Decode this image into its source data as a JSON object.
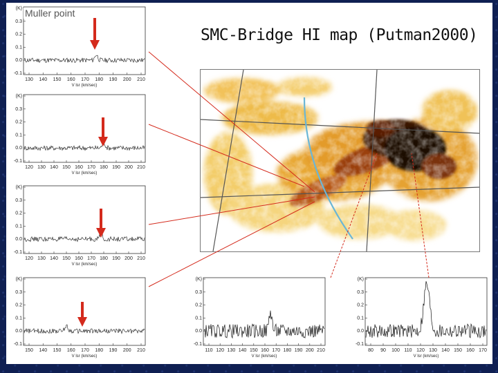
{
  "slide": {
    "title": "SMC-Bridge HI map (Putman2000)",
    "accent_color": "#d42a1c",
    "stream_color": "#6ab6d6",
    "background_color": "#0f1f52"
  },
  "spectra": [
    {
      "id": "muller",
      "label": "Muller point",
      "x_ticks": [
        "130",
        "140",
        "150",
        "160",
        "170",
        "180",
        "190",
        "200",
        "210"
      ],
      "y_ticks": [
        "(K)",
        "0.3",
        "0.2",
        "0.1",
        "0.0",
        "-0.1"
      ],
      "x_axis_title": "V lsr (km/sec)",
      "peak_velocity": 178
    },
    {
      "id": "p2",
      "label": "",
      "x_ticks": [
        "120",
        "130",
        "140",
        "150",
        "160",
        "170",
        "180",
        "190",
        "200",
        "210"
      ],
      "y_ticks": [
        "(K)",
        "0.3",
        "0.2",
        "0.1",
        "0.0",
        "-0.1"
      ],
      "x_axis_title": "V lsr (km/sec)",
      "peak_velocity": 180
    },
    {
      "id": "p3",
      "label": "",
      "x_ticks": [
        "120",
        "130",
        "140",
        "150",
        "160",
        "170",
        "180",
        "190",
        "200",
        "210"
      ],
      "y_ticks": [
        "(K)",
        "0.3",
        "0.2",
        "0.1",
        "0.0",
        "-0.1"
      ],
      "x_axis_title": "V lsr (km/sec)",
      "peak_velocity": 178
    },
    {
      "id": "p4",
      "label": "",
      "x_ticks": [
        "150",
        "140",
        "150",
        "160",
        "170",
        "180",
        "190",
        "200",
        "210"
      ],
      "y_ticks": [
        "(K)",
        "0.3",
        "0.2",
        "0.1",
        "0.0",
        "-0.1"
      ],
      "x_axis_title": "V lsr (km/sec)",
      "peak_velocity": 170
    },
    {
      "id": "p5",
      "label": "",
      "x_ticks": [
        "110",
        "120",
        "130",
        "140",
        "150",
        "160",
        "170",
        "180",
        "190",
        "200",
        "210"
      ],
      "y_ticks": [
        "(K)",
        "0.3",
        "0.2",
        "0.1",
        "0.0",
        "-0.1"
      ],
      "x_axis_title": "V lsr (km/sec)",
      "peak_velocity": 165
    },
    {
      "id": "p6",
      "label": "",
      "x_ticks": [
        "80",
        "90",
        "100",
        "110",
        "120",
        "130",
        "140",
        "150",
        "160",
        "170"
      ],
      "y_ticks": [
        "(K)",
        "0.3",
        "0.2",
        "0.1",
        "0.0",
        "-0.1"
      ],
      "x_axis_title": "V lsr (km/sec)",
      "peak_velocity": 125
    }
  ]
}
